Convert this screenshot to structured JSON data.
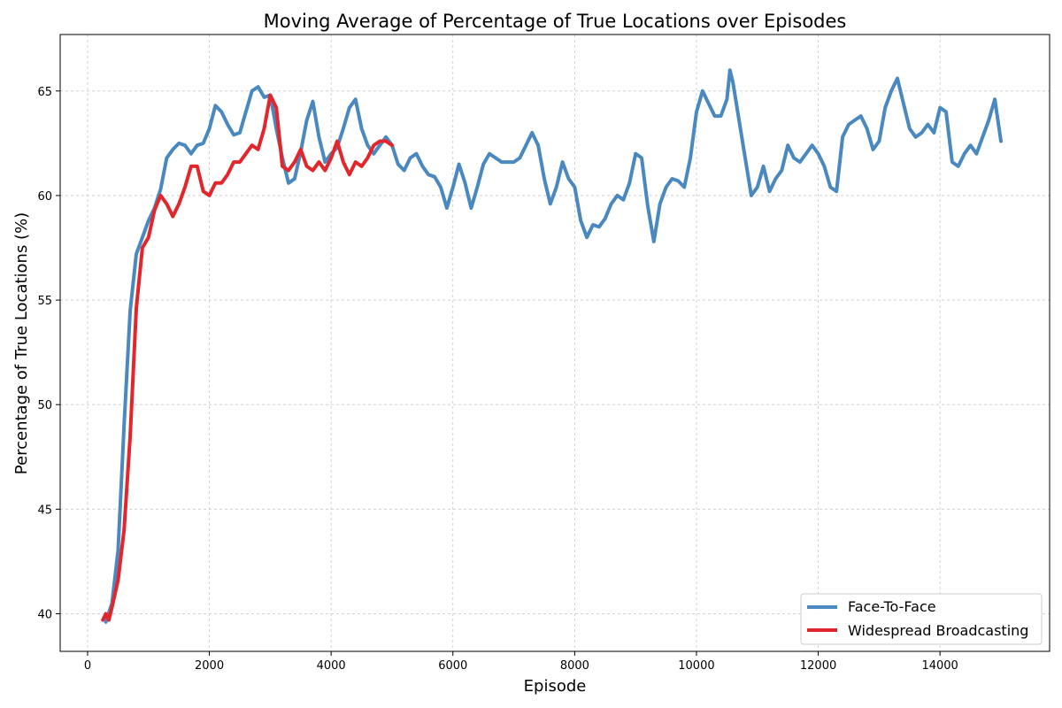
{
  "chart_data": {
    "type": "line",
    "title": "Moving Average of Percentage of True Locations over Episodes",
    "xlabel": "Episode",
    "ylabel": "Percentage of True Locations (%)",
    "xlim": [
      -450,
      15800
    ],
    "ylim": [
      38.2,
      67.7
    ],
    "xticks": [
      0,
      2000,
      4000,
      6000,
      8000,
      10000,
      12000,
      14000
    ],
    "yticks": [
      40,
      45,
      50,
      55,
      60,
      65
    ],
    "grid": true,
    "legend_position": "lower-right",
    "series": [
      {
        "name": "Face-To-Face",
        "color": "#4a88c0",
        "points": [
          [
            300,
            39.6
          ],
          [
            400,
            40.5
          ],
          [
            500,
            43.0
          ],
          [
            600,
            49.0
          ],
          [
            700,
            54.5
          ],
          [
            800,
            57.2
          ],
          [
            900,
            58.0
          ],
          [
            1000,
            58.8
          ],
          [
            1100,
            59.4
          ],
          [
            1200,
            60.3
          ],
          [
            1300,
            61.8
          ],
          [
            1400,
            62.2
          ],
          [
            1500,
            62.5
          ],
          [
            1600,
            62.4
          ],
          [
            1700,
            62.0
          ],
          [
            1800,
            62.4
          ],
          [
            1900,
            62.5
          ],
          [
            2000,
            63.2
          ],
          [
            2100,
            64.3
          ],
          [
            2200,
            64.0
          ],
          [
            2300,
            63.4
          ],
          [
            2400,
            62.9
          ],
          [
            2500,
            63.0
          ],
          [
            2600,
            64.0
          ],
          [
            2700,
            65.0
          ],
          [
            2800,
            65.2
          ],
          [
            2900,
            64.7
          ],
          [
            3000,
            64.8
          ],
          [
            3100,
            63.2
          ],
          [
            3200,
            61.8
          ],
          [
            3300,
            60.6
          ],
          [
            3400,
            60.8
          ],
          [
            3500,
            62.1
          ],
          [
            3600,
            63.6
          ],
          [
            3700,
            64.5
          ],
          [
            3800,
            62.8
          ],
          [
            3900,
            61.6
          ],
          [
            4000,
            62.0
          ],
          [
            4100,
            62.3
          ],
          [
            4200,
            63.2
          ],
          [
            4300,
            64.2
          ],
          [
            4400,
            64.6
          ],
          [
            4500,
            63.2
          ],
          [
            4600,
            62.4
          ],
          [
            4700,
            62.0
          ],
          [
            4800,
            62.4
          ],
          [
            4900,
            62.8
          ],
          [
            5000,
            62.4
          ],
          [
            5100,
            61.5
          ],
          [
            5200,
            61.2
          ],
          [
            5300,
            61.8
          ],
          [
            5400,
            62.0
          ],
          [
            5500,
            61.4
          ],
          [
            5600,
            61.0
          ],
          [
            5700,
            60.9
          ],
          [
            5800,
            60.4
          ],
          [
            5900,
            59.4
          ],
          [
            6000,
            60.4
          ],
          [
            6100,
            61.5
          ],
          [
            6200,
            60.6
          ],
          [
            6300,
            59.4
          ],
          [
            6400,
            60.4
          ],
          [
            6500,
            61.5
          ],
          [
            6600,
            62.0
          ],
          [
            6700,
            61.8
          ],
          [
            6800,
            61.6
          ],
          [
            6900,
            61.6
          ],
          [
            7000,
            61.6
          ],
          [
            7100,
            61.8
          ],
          [
            7200,
            62.4
          ],
          [
            7300,
            63.0
          ],
          [
            7400,
            62.4
          ],
          [
            7500,
            60.8
          ],
          [
            7600,
            59.6
          ],
          [
            7700,
            60.4
          ],
          [
            7800,
            61.6
          ],
          [
            7900,
            60.8
          ],
          [
            8000,
            60.4
          ],
          [
            8100,
            58.8
          ],
          [
            8200,
            58.0
          ],
          [
            8300,
            58.6
          ],
          [
            8400,
            58.5
          ],
          [
            8500,
            58.9
          ],
          [
            8600,
            59.6
          ],
          [
            8700,
            60.0
          ],
          [
            8800,
            59.8
          ],
          [
            8900,
            60.6
          ],
          [
            9000,
            62.0
          ],
          [
            9100,
            61.8
          ],
          [
            9200,
            59.5
          ],
          [
            9300,
            57.8
          ],
          [
            9400,
            59.6
          ],
          [
            9500,
            60.4
          ],
          [
            9600,
            60.8
          ],
          [
            9700,
            60.7
          ],
          [
            9800,
            60.4
          ],
          [
            9900,
            61.8
          ],
          [
            10000,
            64.0
          ],
          [
            10100,
            65.0
          ],
          [
            10200,
            64.4
          ],
          [
            10300,
            63.8
          ],
          [
            10400,
            63.8
          ],
          [
            10500,
            64.6
          ],
          [
            10550,
            66.0
          ],
          [
            10600,
            65.4
          ],
          [
            10700,
            63.6
          ],
          [
            10800,
            61.8
          ],
          [
            10900,
            60.0
          ],
          [
            11000,
            60.4
          ],
          [
            11100,
            61.4
          ],
          [
            11200,
            60.2
          ],
          [
            11300,
            60.8
          ],
          [
            11400,
            61.2
          ],
          [
            11500,
            62.4
          ],
          [
            11600,
            61.8
          ],
          [
            11700,
            61.6
          ],
          [
            11800,
            62.0
          ],
          [
            11900,
            62.4
          ],
          [
            12000,
            62.0
          ],
          [
            12100,
            61.4
          ],
          [
            12200,
            60.4
          ],
          [
            12300,
            60.2
          ],
          [
            12400,
            62.8
          ],
          [
            12500,
            63.4
          ],
          [
            12600,
            63.6
          ],
          [
            12700,
            63.8
          ],
          [
            12800,
            63.2
          ],
          [
            12900,
            62.2
          ],
          [
            13000,
            62.6
          ],
          [
            13100,
            64.2
          ],
          [
            13200,
            65.0
          ],
          [
            13300,
            65.6
          ],
          [
            13400,
            64.4
          ],
          [
            13500,
            63.2
          ],
          [
            13600,
            62.8
          ],
          [
            13700,
            63.0
          ],
          [
            13800,
            63.4
          ],
          [
            13900,
            63.0
          ],
          [
            14000,
            64.2
          ],
          [
            14100,
            64.0
          ],
          [
            14200,
            61.6
          ],
          [
            14300,
            61.4
          ],
          [
            14400,
            62.0
          ],
          [
            14500,
            62.4
          ],
          [
            14600,
            62.0
          ],
          [
            14700,
            62.8
          ],
          [
            14800,
            63.6
          ],
          [
            14900,
            64.6
          ],
          [
            15000,
            62.6
          ]
        ]
      },
      {
        "name": "Widespread Broadcasting",
        "color": "#e3262b",
        "points": [
          [
            250,
            39.7
          ],
          [
            300,
            40.0
          ],
          [
            350,
            39.7
          ],
          [
            400,
            40.3
          ],
          [
            500,
            41.6
          ],
          [
            600,
            44.0
          ],
          [
            700,
            48.5
          ],
          [
            800,
            54.6
          ],
          [
            900,
            57.5
          ],
          [
            1000,
            58.0
          ],
          [
            1100,
            59.3
          ],
          [
            1200,
            60.0
          ],
          [
            1300,
            59.6
          ],
          [
            1400,
            59.0
          ],
          [
            1500,
            59.6
          ],
          [
            1600,
            60.4
          ],
          [
            1700,
            61.4
          ],
          [
            1800,
            61.4
          ],
          [
            1900,
            60.2
          ],
          [
            2000,
            60.0
          ],
          [
            2100,
            60.6
          ],
          [
            2200,
            60.6
          ],
          [
            2300,
            61.0
          ],
          [
            2400,
            61.6
          ],
          [
            2500,
            61.6
          ],
          [
            2600,
            62.0
          ],
          [
            2700,
            62.4
          ],
          [
            2800,
            62.2
          ],
          [
            2900,
            63.2
          ],
          [
            3000,
            64.8
          ],
          [
            3100,
            64.2
          ],
          [
            3200,
            61.4
          ],
          [
            3300,
            61.2
          ],
          [
            3400,
            61.6
          ],
          [
            3500,
            62.2
          ],
          [
            3600,
            61.4
          ],
          [
            3700,
            61.2
          ],
          [
            3800,
            61.6
          ],
          [
            3900,
            61.2
          ],
          [
            4000,
            61.8
          ],
          [
            4100,
            62.6
          ],
          [
            4200,
            61.6
          ],
          [
            4300,
            61.0
          ],
          [
            4400,
            61.6
          ],
          [
            4500,
            61.4
          ],
          [
            4600,
            61.8
          ],
          [
            4700,
            62.4
          ],
          [
            4800,
            62.6
          ],
          [
            4900,
            62.6
          ],
          [
            5000,
            62.4
          ]
        ]
      }
    ]
  }
}
